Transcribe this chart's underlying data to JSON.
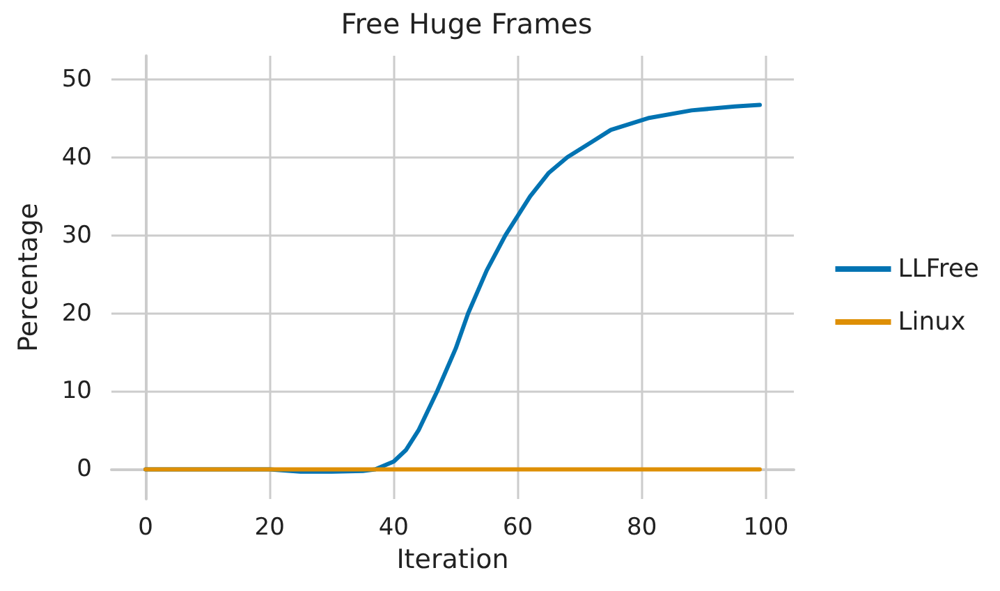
{
  "chart_data": {
    "type": "line",
    "title": "Free Huge Frames",
    "xlabel": "Iteration",
    "ylabel": "Percentage",
    "xlim": [
      -5.5,
      104.5
    ],
    "xticks": [
      0,
      20,
      40,
      60,
      80,
      100
    ],
    "ylim": [
      -3.8,
      53
    ],
    "yticks": [
      0,
      10,
      20,
      30,
      40,
      50
    ],
    "grid": true,
    "legend": "right",
    "line_style": "solid",
    "marker": "none",
    "series": [
      {
        "name": "LLFree",
        "color": "#0173b2",
        "x": [
          0,
          10,
          20,
          25,
          30,
          35,
          37,
          40,
          42,
          44,
          47,
          50,
          52,
          55,
          58,
          62,
          65,
          68,
          72,
          75,
          81,
          88,
          95,
          99
        ],
        "values": [
          0,
          0,
          0,
          -0.3,
          -0.3,
          -0.2,
          0,
          1,
          2.5,
          5,
          10,
          15.5,
          20,
          25.5,
          30,
          35,
          38,
          40,
          42,
          43.5,
          45,
          46,
          46.5,
          46.7
        ]
      },
      {
        "name": "Linux",
        "color": "#de8f05",
        "x": [
          0,
          99
        ],
        "values": [
          0,
          0
        ]
      }
    ]
  }
}
